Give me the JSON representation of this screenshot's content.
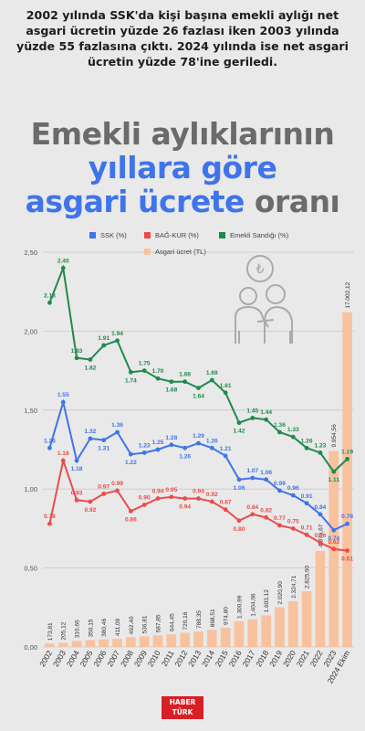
{
  "intro": "2002 yılında SSK'da kişi başına emekli aylığı net asgari ücretin yüzde 26 fazlası iken 2003 yılında yüzde 55 fazlasına çıktı. 2024 yılında ise net asgari ücretin yüzde 78'ine geriledi.",
  "title": {
    "line1": "Emekli aylıklarının",
    "line2": "yıllara göre",
    "line3_highlight": "asgari ücrete",
    "line3_rest": " oranı"
  },
  "logo": {
    "line1": "HABER",
    "line2": "TÜRK"
  },
  "colors": {
    "ssk": "#3f74ea",
    "bagkur": "#ec4b4b",
    "emekli": "#1f8a4c",
    "asgari": "#f9c29f",
    "title_grey": "#6b6b6b",
    "title_blue": "#3f74ea"
  },
  "icon": "elderly-couple-icon",
  "chart_data": {
    "type": "line",
    "title": "",
    "xlabel": "",
    "ylabel": "",
    "ylim": [
      0,
      2.5
    ],
    "yticks": [
      "0,00",
      "0,50",
      "1,00",
      "1,50",
      "2,00",
      "2,50"
    ],
    "grid": true,
    "legend_position": "top",
    "categories": [
      "2002",
      "2003",
      "2004",
      "2005",
      "2006",
      "2007",
      "2008",
      "2009",
      "2010",
      "2011",
      "2012",
      "2013",
      "2014",
      "2015",
      "2016",
      "2017",
      "2018",
      "2019",
      "2020",
      "2021",
      "2022",
      "2023",
      "2024 Ekim"
    ],
    "series": [
      {
        "name": "SSK (%)",
        "values": [
          1.26,
          1.55,
          1.18,
          1.32,
          1.31,
          1.36,
          1.22,
          1.23,
          1.25,
          1.28,
          1.26,
          1.29,
          1.26,
          1.21,
          1.06,
          1.07,
          1.06,
          0.99,
          0.96,
          0.91,
          0.84,
          0.74,
          0.78
        ],
        "labels": [
          "1.26",
          "1.55",
          "1.18",
          "1.32",
          "1.31",
          "1.36",
          "1.22",
          "1.23",
          "1.25",
          "1.28",
          "1.26",
          "1.29",
          "1.26",
          "1.21",
          "1.06",
          "1.07",
          "1.06",
          "0.99",
          "0.96",
          "0.91",
          "0.84",
          "0.74",
          "0.78"
        ]
      },
      {
        "name": "BAĞ-KUR (%)",
        "values": [
          0.78,
          1.18,
          0.93,
          0.92,
          0.97,
          0.99,
          0.86,
          0.9,
          0.94,
          0.95,
          0.94,
          0.94,
          0.92,
          0.87,
          0.8,
          0.84,
          0.82,
          0.77,
          0.75,
          0.71,
          0.66,
          0.62,
          0.61
        ],
        "labels": [
          "0.78",
          "1.18",
          "0.93",
          "0.92",
          "0.97",
          "0.99",
          "0.86",
          "0.90",
          "0.94",
          "0.95",
          "0.94",
          "0.94",
          "0.92",
          "0.87",
          "0.80",
          "0.84",
          "0.82",
          "0.77",
          "0.75",
          "0.71",
          "0.66",
          "0.62",
          "0.61"
        ]
      },
      {
        "name": "Emekli Sandığı (%)",
        "values": [
          2.18,
          2.4,
          1.83,
          1.82,
          1.91,
          1.94,
          1.74,
          1.75,
          1.7,
          1.68,
          1.68,
          1.64,
          1.69,
          1.61,
          1.42,
          1.45,
          1.44,
          1.36,
          1.33,
          1.26,
          1.23,
          1.11,
          1.19
        ],
        "labels": [
          "2.18",
          "2.40",
          "1.83",
          "1.82",
          "1.91",
          "1.94",
          "1.74",
          "1.75",
          "1.70",
          "1.68",
          "1.68",
          "1.64",
          "1.69",
          "1.61",
          "1.42",
          "1.45",
          "1.44",
          "1.36",
          "1.33",
          "1.26",
          "1.23",
          "1.11",
          "1.19"
        ]
      },
      {
        "name": "Asgari ücret (TL)",
        "type": "bar",
        "values": [
          173.81,
          205.12,
          310.66,
          350.15,
          380.46,
          411.09,
          492.4,
          536.81,
          587.85,
          644.45,
          720.16,
          788.35,
          868.51,
          974.8,
          1300.99,
          1404.06,
          1603.12,
          2020.9,
          2324.71,
          2825.9,
          4876.67,
          9954.56,
          17002.12
        ],
        "labels": [
          "173,81",
          "205,12",
          "310,66",
          "350,15",
          "380,46",
          "411,09",
          "492,40",
          "536,81",
          "587,85",
          "644,45",
          "720,16",
          "788,35",
          "868,51",
          "974,80",
          "1.300,99",
          "1.404,06",
          "1.603,12",
          "2.020,90",
          "2.324,71",
          "2.825,90",
          "4.876,67",
          "9.954,56",
          "17.002,12"
        ]
      }
    ]
  }
}
